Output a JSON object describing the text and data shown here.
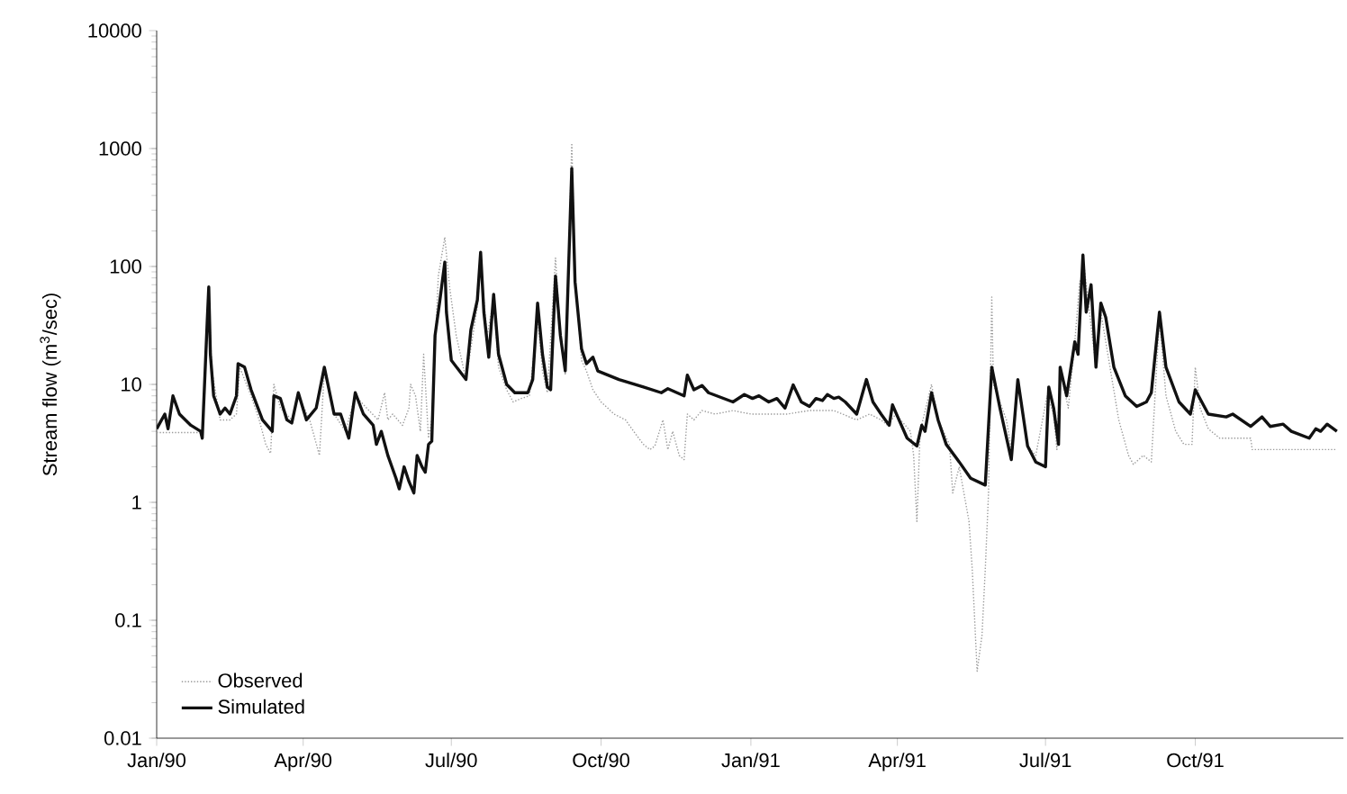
{
  "chart_data": {
    "type": "line",
    "xlabel": null,
    "ylabel": "Stream flow (m$^{3}$/sec)",
    "log": "y",
    "legend": "bottom left",
    "marker": "none",
    "xlim": [
      "1990-01-01",
      "1991-12-31"
    ],
    "xticks": [
      {
        "value": "1990-01-01",
        "label": "Jan/90"
      },
      {
        "value": "1990-04-01",
        "label": "Apr/90"
      },
      {
        "value": "1990-07-01",
        "label": "Jul/90"
      },
      {
        "value": "1990-10-01",
        "label": "Oct/90"
      },
      {
        "value": "1991-01-01",
        "label": "Jan/91"
      },
      {
        "value": "1991-04-01",
        "label": "Apr/91"
      },
      {
        "value": "1991-07-01",
        "label": "Jul/91"
      },
      {
        "value": "1991-10-01",
        "label": "Oct/91"
      }
    ],
    "ylim": [
      0.01,
      10000
    ],
    "yticks": [
      0.01,
      0.1,
      1,
      10,
      100,
      1000,
      10000
    ],
    "series": [
      {
        "name": "Observed",
        "color": "#9a9a9a",
        "line_style": "dotted",
        "x": [
          "1990-01-01",
          "1990-01-29",
          "1990-02-01",
          "1990-02-02",
          "1990-02-04",
          "1990-02-09",
          "1990-02-15",
          "1990-02-19",
          "1990-02-21",
          "1990-02-28",
          "1990-03-05",
          "1990-03-09",
          "1990-03-12",
          "1990-03-14",
          "1990-03-18",
          "1990-03-25",
          "1990-03-29",
          "1990-04-05",
          "1990-04-11",
          "1990-04-14",
          "1990-04-20",
          "1990-04-27",
          "1990-05-03",
          "1990-05-10",
          "1990-05-17",
          "1990-05-21",
          "1990-05-23",
          "1990-05-26",
          "1990-06-01",
          "1990-06-05",
          "1990-06-06",
          "1990-06-09",
          "1990-06-12",
          "1990-06-14",
          "1990-06-17",
          "1990-06-19",
          "1990-06-23",
          "1990-06-27",
          "1990-06-30",
          "1990-07-04",
          "1990-07-10",
          "1990-07-17",
          "1990-07-19",
          "1990-07-23",
          "1990-07-27",
          "1990-07-30",
          "1990-08-04",
          "1990-08-08",
          "1990-08-13",
          "1990-08-18",
          "1990-08-23",
          "1990-08-26",
          "1990-08-29",
          "1990-09-03",
          "1990-09-06",
          "1990-09-09",
          "1990-09-13",
          "1990-09-15",
          "1990-09-19",
          "1990-09-22",
          "1990-09-26",
          "1990-10-01",
          "1990-10-09",
          "1990-10-16",
          "1990-10-21",
          "1990-10-27",
          "1990-10-31",
          "1990-11-03",
          "1990-11-08",
          "1990-11-11",
          "1990-11-14",
          "1990-11-18",
          "1990-11-21",
          "1990-11-23",
          "1990-11-27",
          "1990-12-02",
          "1990-12-10",
          "1990-12-21",
          "1991-01-01",
          "1991-01-12",
          "1991-01-23",
          "1991-02-06",
          "1991-02-21",
          "1991-03-07",
          "1991-03-15",
          "1991-03-22",
          "1991-03-26",
          "1991-03-31",
          "1991-04-09",
          "1991-04-11",
          "1991-04-13",
          "1991-04-15",
          "1991-04-22",
          "1991-04-26",
          "1991-05-03",
          "1991-05-05",
          "1991-05-09",
          "1991-05-15",
          "1991-05-17",
          "1991-05-20",
          "1991-05-23",
          "1991-05-25",
          "1991-05-27",
          "1991-05-29",
          "1991-05-30",
          "1991-06-07",
          "1991-06-10",
          "1991-06-14",
          "1991-06-20",
          "1991-06-25",
          "1991-07-02",
          "1991-07-06",
          "1991-07-08",
          "1991-07-10",
          "1991-07-15",
          "1991-07-19",
          "1991-07-22",
          "1991-07-25",
          "1991-07-28",
          "1991-08-01",
          "1991-08-04",
          "1991-08-10",
          "1991-08-15",
          "1991-08-21",
          "1991-08-24",
          "1991-08-30",
          "1991-09-04",
          "1991-09-09",
          "1991-09-13",
          "1991-09-19",
          "1991-09-24",
          "1991-09-29",
          "1991-10-01",
          "1991-10-04",
          "1991-10-09",
          "1991-10-16",
          "1991-11-04",
          "1991-11-05",
          "1991-12-27"
        ],
        "values": [
          3.9,
          3.9,
          26,
          52,
          13,
          5.0,
          5.0,
          5.6,
          14,
          8.0,
          5.0,
          3.1,
          2.6,
          10,
          6.3,
          5.0,
          8.0,
          5.0,
          2.5,
          13,
          5.6,
          4.0,
          8.0,
          6.3,
          5.0,
          8.5,
          5.0,
          5.6,
          4.5,
          6.3,
          10,
          8.0,
          4.0,
          18,
          3.5,
          5.0,
          83,
          177,
          66,
          26,
          11,
          46,
          105,
          26,
          52,
          14,
          9.0,
          7.1,
          7.6,
          8.0,
          37,
          13,
          8.5,
          118,
          26,
          12,
          1110,
          83,
          16,
          13,
          9.0,
          7.1,
          5.6,
          5.0,
          4.0,
          3.1,
          2.8,
          3.0,
          5.0,
          2.8,
          4.0,
          2.5,
          2.3,
          5.6,
          5.0,
          6.0,
          5.6,
          6.0,
          5.6,
          5.6,
          5.6,
          6.0,
          6.0,
          5.0,
          5.6,
          5.0,
          4.5,
          5.6,
          4.0,
          2.5,
          0.69,
          4.0,
          10,
          5.0,
          3.1,
          1.2,
          2.0,
          0.69,
          0.27,
          0.037,
          0.075,
          0.27,
          1.2,
          55,
          10,
          5.0,
          2.8,
          10,
          3.0,
          2.5,
          8.0,
          5.6,
          2.8,
          13,
          6.3,
          23,
          74,
          93,
          41,
          14,
          41,
          13,
          5.0,
          2.5,
          2.1,
          2.5,
          2.2,
          37,
          8.0,
          4.0,
          3.1,
          3.1,
          14,
          6.3,
          4.2,
          3.5,
          3.5,
          2.8,
          2.8
        ]
      },
      {
        "name": "Simulated",
        "color": "#111111",
        "line_style": "solid",
        "x": [
          "1990-01-01",
          "1990-01-06",
          "1990-01-08",
          "1990-01-11",
          "1990-01-15",
          "1990-01-22",
          "1990-01-28",
          "1990-01-29",
          "1990-02-01",
          "1990-02-02",
          "1990-02-03",
          "1990-02-05",
          "1990-02-09",
          "1990-02-12",
          "1990-02-15",
          "1990-02-19",
          "1990-02-20",
          "1990-02-24",
          "1990-02-28",
          "1990-03-07",
          "1990-03-13",
          "1990-03-14",
          "1990-03-18",
          "1990-03-22",
          "1990-03-25",
          "1990-03-29",
          "1990-04-03",
          "1990-04-09",
          "1990-04-14",
          "1990-04-20",
          "1990-04-24",
          "1990-04-29",
          "1990-05-03",
          "1990-05-08",
          "1990-05-14",
          "1990-05-16",
          "1990-05-19",
          "1990-05-23",
          "1990-05-28",
          "1990-05-30",
          "1990-06-02",
          "1990-06-05",
          "1990-06-08",
          "1990-06-10",
          "1990-06-13",
          "1990-06-15",
          "1990-06-17",
          "1990-06-19",
          "1990-06-21",
          "1990-06-24",
          "1990-06-27",
          "1990-06-28",
          "1990-07-01",
          "1990-07-06",
          "1990-07-10",
          "1990-07-13",
          "1990-07-17",
          "1990-07-19",
          "1990-07-21",
          "1990-07-24",
          "1990-07-27",
          "1990-07-30",
          "1990-08-04",
          "1990-08-09",
          "1990-08-17",
          "1990-08-20",
          "1990-08-23",
          "1990-08-26",
          "1990-08-29",
          "1990-08-31",
          "1990-09-03",
          "1990-09-06",
          "1990-09-09",
          "1990-09-13",
          "1990-09-15",
          "1990-09-19",
          "1990-09-22",
          "1990-09-26",
          "1990-09-29",
          "1990-10-12",
          "1990-10-27",
          "1990-11-07",
          "1990-11-11",
          "1990-11-21",
          "1990-11-23",
          "1990-11-27",
          "1990-12-02",
          "1990-12-06",
          "1990-12-21",
          "1990-12-28",
          "1991-01-02",
          "1991-01-06",
          "1991-01-12",
          "1991-01-17",
          "1991-01-22",
          "1991-01-27",
          "1991-02-01",
          "1991-02-06",
          "1991-02-10",
          "1991-02-14",
          "1991-02-17",
          "1991-02-21",
          "1991-02-24",
          "1991-02-28",
          "1991-03-07",
          "1991-03-13",
          "1991-03-17",
          "1991-03-22",
          "1991-03-27",
          "1991-03-29",
          "1991-04-02",
          "1991-04-07",
          "1991-04-13",
          "1991-04-16",
          "1991-04-18",
          "1991-04-22",
          "1991-04-26",
          "1991-05-01",
          "1991-05-09",
          "1991-05-16",
          "1991-05-25",
          "1991-05-29",
          "1991-06-03",
          "1991-06-10",
          "1991-06-14",
          "1991-06-20",
          "1991-06-25",
          "1991-07-01",
          "1991-07-03",
          "1991-07-06",
          "1991-07-09",
          "1991-07-10",
          "1991-07-14",
          "1991-07-19",
          "1991-07-21",
          "1991-07-24",
          "1991-07-26",
          "1991-07-29",
          "1991-08-01",
          "1991-08-04",
          "1991-08-07",
          "1991-08-12",
          "1991-08-19",
          "1991-08-26",
          "1991-09-01",
          "1991-09-04",
          "1991-09-09",
          "1991-09-13",
          "1991-09-21",
          "1991-09-28",
          "1991-10-01",
          "1991-10-09",
          "1991-10-20",
          "1991-10-24",
          "1991-11-04",
          "1991-11-11",
          "1991-11-16",
          "1991-11-24",
          "1991-11-29",
          "1991-12-10",
          "1991-12-14",
          "1991-12-17",
          "1991-12-21",
          "1991-12-27"
        ],
        "values": [
          4.2,
          5.6,
          4.2,
          8.0,
          5.6,
          4.5,
          4.0,
          3.5,
          33,
          67,
          18,
          8.0,
          5.6,
          6.3,
          5.6,
          8.0,
          15,
          14,
          9.0,
          5.0,
          4.0,
          8.0,
          7.6,
          5.0,
          4.7,
          8.5,
          5.0,
          6.3,
          14,
          5.6,
          5.6,
          3.5,
          8.5,
          5.6,
          4.5,
          3.1,
          4.0,
          2.5,
          1.6,
          1.3,
          2.0,
          1.5,
          1.2,
          2.5,
          2.0,
          1.8,
          3.1,
          3.3,
          26,
          52,
          109,
          41,
          16,
          13,
          11,
          29,
          52,
          132,
          41,
          17,
          58,
          18,
          10,
          8.5,
          8.5,
          11,
          49,
          18,
          9.5,
          9.0,
          83,
          26,
          13,
          680,
          74,
          20,
          15,
          17,
          13,
          11,
          9.5,
          8.5,
          9.2,
          8.0,
          12,
          9.0,
          9.8,
          8.5,
          7.1,
          8.2,
          7.6,
          8.0,
          7.1,
          7.6,
          6.3,
          9.9,
          7.1,
          6.5,
          7.6,
          7.3,
          8.2,
          7.6,
          7.8,
          7.1,
          5.6,
          11,
          7.1,
          5.6,
          4.5,
          6.7,
          5.0,
          3.5,
          3.0,
          4.5,
          4.0,
          8.5,
          5.0,
          3.1,
          2.2,
          1.6,
          1.4,
          14,
          6.3,
          2.3,
          11,
          3.0,
          2.2,
          2.0,
          9.5,
          6.3,
          3.1,
          14,
          8.0,
          23,
          18,
          125,
          41,
          70,
          14,
          49,
          37,
          14,
          8.0,
          6.5,
          7.1,
          8.5,
          41,
          14,
          7.1,
          5.6,
          9.0,
          5.6,
          5.3,
          5.6,
          4.4,
          5.3,
          4.4,
          4.6,
          4.0,
          3.5,
          4.2,
          4.0,
          4.6,
          4.0
        ]
      }
    ]
  }
}
